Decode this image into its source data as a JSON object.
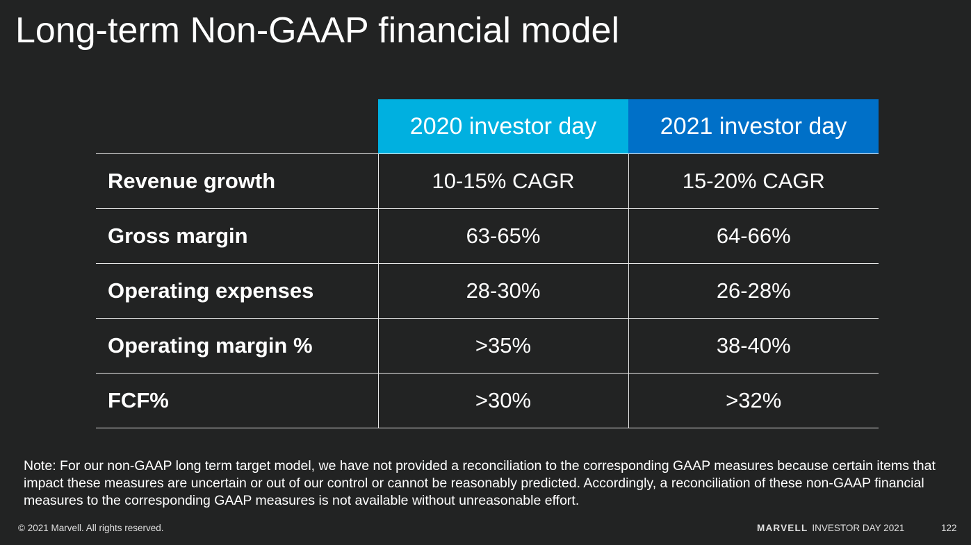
{
  "title": "Long-term Non-GAAP financial model",
  "table": {
    "columns": [
      "",
      "2020 investor day",
      "2021 investor day"
    ],
    "column_colors": [
      "",
      "#00b0e0",
      "#0070c8"
    ],
    "rows": [
      {
        "metric": "Revenue growth",
        "v2020": "10-15% CAGR",
        "v2021": "15-20% CAGR"
      },
      {
        "metric": "Gross margin",
        "v2020": "63-65%",
        "v2021": "64-66%"
      },
      {
        "metric": "Operating expenses",
        "v2020": "28-30%",
        "v2021": "26-28%"
      },
      {
        "metric": "Operating margin %",
        "v2020": ">35%",
        "v2021": "38-40%"
      },
      {
        "metric": "FCF%",
        "v2020": ">30%",
        "v2021": ">32%"
      }
    ]
  },
  "note": "Note: For our non-GAAP long term target model, we have not provided a reconciliation to the corresponding GAAP measures because certain items that impact these measures are uncertain or out of our control or cannot be reasonably predicted. Accordingly, a reconciliation of these non-GAAP financial measures to the corresponding GAAP measures is not available without unreasonable effort.",
  "footer": {
    "copyright": "© 2021 Marvell. All rights reserved.",
    "brand": "MARVELL",
    "event": "INVESTOR DAY 2021",
    "page": "122"
  }
}
